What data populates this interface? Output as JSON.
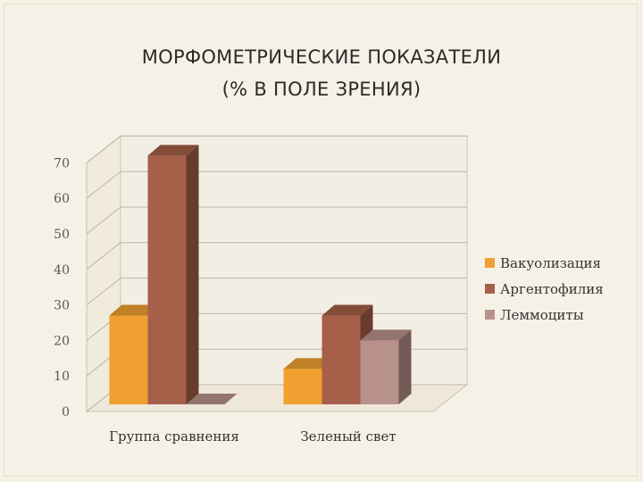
{
  "slide": {
    "title_line1": "МОРФОМЕТРИЧЕСКИЕ ПОКАЗАТЕЛИ",
    "title_line2": "(% В ПОЛЕ ЗРЕНИЯ)"
  },
  "chart_data": {
    "type": "bar",
    "style": "3d-clustered-column",
    "categories": [
      "Группа сравнения",
      "Зеленый свет"
    ],
    "series": [
      {
        "name": "Вакуолизация",
        "values": [
          25,
          10
        ],
        "color": "#f0a030"
      },
      {
        "name": "Аргентофилия",
        "values": [
          70,
          25
        ],
        "color": "#a65f48"
      },
      {
        "name": "Леммоциты",
        "values": [
          0,
          18
        ],
        "color": "#b8918a"
      }
    ],
    "y_ticks": [
      "0",
      "10",
      "20",
      "30",
      "40",
      "50",
      "60",
      "70"
    ],
    "ylim": [
      0,
      70
    ],
    "grid": true,
    "legend_position": "right"
  }
}
